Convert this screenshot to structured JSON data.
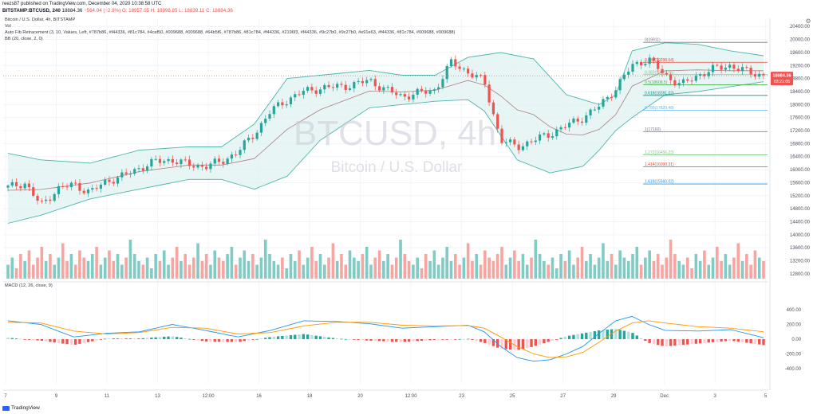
{
  "header": {
    "published_line": "reezs87 published on TradingView.com, December 04, 2020 10:38:58 UTC",
    "symbol": "BITSTAMP:BTCUSD, 240",
    "last": "18884.36",
    "change": "−564.04 (−2.9%)",
    "ohlc": "O: 18957.05  H: 18998.85  L: 18839.11  C: 18884.36"
  },
  "indicators": {
    "title": "Bitcoin / U.S. Dollar, 4h, BITSTAMP",
    "vol": "Vol",
    "fib": "Auto Fib Retracement (3, 10, Values, Left, #787b86, #f44336, #81c784, #4caf50, #009688, #009688, #64b5f6, #787b86, #81c784, #f44336, #2196f3, #f44336, #9c27b0, #9c27b0, #e91e63, #f44336, #81c784, #009688, #009688)",
    "bb": "BB (20, close, 2, 0)",
    "macd": "MACD (12, 26, close, 9)"
  },
  "watermark": {
    "symbol": "BTCUSD, 4h",
    "name": "Bitcoin / U.S. Dollar"
  },
  "branding": "TradingView",
  "colors": {
    "up": "#26a69a",
    "down": "#ef5350",
    "band_fill": "#e0f2f1",
    "band_line": "#4db6ac",
    "basis": "#ad7f81",
    "macd": "#2196f3",
    "signal": "#ff9800",
    "vol_up": "#80cbc4",
    "vol_down": "#f8a5a1"
  },
  "chart_data": {
    "type": "candlestick",
    "price_axis": {
      "ticks": [
        12800,
        13200,
        13600,
        14000,
        14400,
        14800,
        15200,
        15600,
        16000,
        16400,
        16800,
        17200,
        17600,
        18000,
        18400,
        18800,
        19200,
        19600,
        20000,
        20400
      ],
      "range": [
        12650,
        20650
      ]
    },
    "last_price_label": "18884.36",
    "countdown_label": "03:21:05",
    "time_axis": [
      "7",
      "9",
      "11",
      "13",
      "12:00",
      "16",
      "18",
      "20",
      "12:00",
      "23",
      "25",
      "27",
      "29",
      "Dec",
      "3",
      "5"
    ],
    "fib_levels": [
      {
        "label": "0(19911)",
        "color": "#787b86",
        "value": 19911
      },
      {
        "label": "0.236(19298.04)",
        "color": "#f44336",
        "value": 19298.04
      },
      {
        "label": "0.382(18919.06)",
        "color": "#81c784",
        "value": 18919.06
      },
      {
        "label": "0.5(18608.5)",
        "color": "#4caf50",
        "value": 18608.5
      },
      {
        "label": "0.618(18281.02)",
        "color": "#009688",
        "value": 18281.02
      },
      {
        "label": "0.786(17820.48)",
        "color": "#64b5f6",
        "value": 17820.48
      },
      {
        "label": "1(17160)",
        "color": "#787b86",
        "value": 17160
      },
      {
        "label": "1.272(16456.23)",
        "color": "#81c784",
        "value": 16456.23
      },
      {
        "label": "1.414(16090.31)",
        "color": "#f44336",
        "value": 16090.31
      },
      {
        "label": "1.618(15560.02)",
        "color": "#2196f3",
        "value": 15560.02
      }
    ],
    "price_path": [
      [
        0,
        15450
      ],
      [
        2,
        15600
      ],
      [
        4,
        14900
      ],
      [
        6,
        15400
      ],
      [
        8,
        15550
      ],
      [
        10,
        15300
      ],
      [
        12,
        15650
      ],
      [
        14,
        15800
      ],
      [
        16,
        16050
      ],
      [
        18,
        16250
      ],
      [
        20,
        16300
      ],
      [
        22,
        16150
      ],
      [
        24,
        16100
      ],
      [
        26,
        16250
      ],
      [
        28,
        16550
      ],
      [
        30,
        17100
      ],
      [
        32,
        17800
      ],
      [
        34,
        18150
      ],
      [
        36,
        18400
      ],
      [
        38,
        18500
      ],
      [
        40,
        18550
      ],
      [
        42,
        18600
      ],
      [
        44,
        18750
      ],
      [
        46,
        18450
      ],
      [
        48,
        18250
      ],
      [
        50,
        18350
      ],
      [
        52,
        18450
      ],
      [
        54,
        19300
      ],
      [
        56,
        19000
      ],
      [
        58,
        18700
      ],
      [
        60,
        16900
      ],
      [
        62,
        16700
      ],
      [
        64,
        16900
      ],
      [
        66,
        17100
      ],
      [
        68,
        17350
      ],
      [
        70,
        17600
      ],
      [
        72,
        17950
      ],
      [
        74,
        18500
      ],
      [
        76,
        19200
      ],
      [
        78,
        19400
      ],
      [
        80,
        18900
      ],
      [
        82,
        18600
      ],
      [
        84,
        18900
      ],
      [
        86,
        19100
      ],
      [
        88,
        19200
      ],
      [
        90,
        19000
      ],
      [
        92,
        18900
      ]
    ],
    "bb_upper_path": [
      [
        0,
        16500
      ],
      [
        4,
        16300
      ],
      [
        10,
        16200
      ],
      [
        16,
        16600
      ],
      [
        22,
        16700
      ],
      [
        26,
        16700
      ],
      [
        30,
        17400
      ],
      [
        34,
        18800
      ],
      [
        38,
        18900
      ],
      [
        44,
        19050
      ],
      [
        48,
        18900
      ],
      [
        52,
        18900
      ],
      [
        56,
        19450
      ],
      [
        60,
        19600
      ],
      [
        64,
        19400
      ],
      [
        68,
        18300
      ],
      [
        72,
        18000
      ],
      [
        74,
        18300
      ],
      [
        76,
        19650
      ],
      [
        80,
        19900
      ],
      [
        84,
        19850
      ],
      [
        88,
        19650
      ],
      [
        92,
        19500
      ]
    ],
    "bb_lower_path": [
      [
        0,
        14350
      ],
      [
        4,
        14600
      ],
      [
        10,
        15100
      ],
      [
        16,
        15400
      ],
      [
        22,
        15700
      ],
      [
        26,
        15700
      ],
      [
        30,
        15400
      ],
      [
        34,
        15800
      ],
      [
        38,
        16900
      ],
      [
        44,
        17900
      ],
      [
        48,
        18000
      ],
      [
        52,
        18100
      ],
      [
        56,
        18150
      ],
      [
        58,
        17800
      ],
      [
        62,
        16300
      ],
      [
        66,
        15900
      ],
      [
        70,
        16100
      ],
      [
        72,
        16600
      ],
      [
        74,
        17200
      ],
      [
        76,
        17600
      ],
      [
        80,
        18300
      ],
      [
        84,
        18400
      ],
      [
        88,
        18550
      ],
      [
        92,
        18700
      ]
    ],
    "volume_pattern": [
      3,
      5,
      2,
      6,
      4,
      7,
      3,
      5,
      8,
      4,
      6,
      3,
      5,
      9,
      4,
      6,
      3,
      7,
      5,
      4,
      6,
      8,
      3,
      5,
      7,
      4,
      6,
      3,
      5,
      10,
      6,
      4
    ],
    "macd_axis_ticks": [
      400,
      200,
      0,
      -200,
      -400
    ],
    "macd_path": [
      [
        0,
        250
      ],
      [
        4,
        200
      ],
      [
        8,
        30
      ],
      [
        12,
        80
      ],
      [
        16,
        100
      ],
      [
        20,
        200
      ],
      [
        24,
        120
      ],
      [
        28,
        30
      ],
      [
        32,
        120
      ],
      [
        36,
        250
      ],
      [
        40,
        240
      ],
      [
        44,
        210
      ],
      [
        48,
        150
      ],
      [
        52,
        170
      ],
      [
        56,
        190
      ],
      [
        58,
        100
      ],
      [
        60,
        -100
      ],
      [
        62,
        -250
      ],
      [
        64,
        -300
      ],
      [
        66,
        -280
      ],
      [
        68,
        -200
      ],
      [
        70,
        -100
      ],
      [
        72,
        80
      ],
      [
        74,
        250
      ],
      [
        76,
        310
      ],
      [
        78,
        200
      ],
      [
        80,
        120
      ],
      [
        84,
        110
      ],
      [
        88,
        130
      ],
      [
        92,
        20
      ]
    ],
    "signal_path": [
      [
        0,
        230
      ],
      [
        4,
        220
      ],
      [
        8,
        110
      ],
      [
        12,
        70
      ],
      [
        16,
        90
      ],
      [
        20,
        160
      ],
      [
        24,
        150
      ],
      [
        28,
        70
      ],
      [
        32,
        90
      ],
      [
        36,
        180
      ],
      [
        40,
        230
      ],
      [
        44,
        230
      ],
      [
        48,
        190
      ],
      [
        52,
        180
      ],
      [
        56,
        185
      ],
      [
        58,
        150
      ],
      [
        60,
        30
      ],
      [
        62,
        -100
      ],
      [
        64,
        -200
      ],
      [
        66,
        -250
      ],
      [
        68,
        -240
      ],
      [
        70,
        -180
      ],
      [
        72,
        -40
      ],
      [
        74,
        110
      ],
      [
        76,
        220
      ],
      [
        78,
        250
      ],
      [
        80,
        220
      ],
      [
        84,
        170
      ],
      [
        88,
        150
      ],
      [
        92,
        100
      ]
    ]
  }
}
